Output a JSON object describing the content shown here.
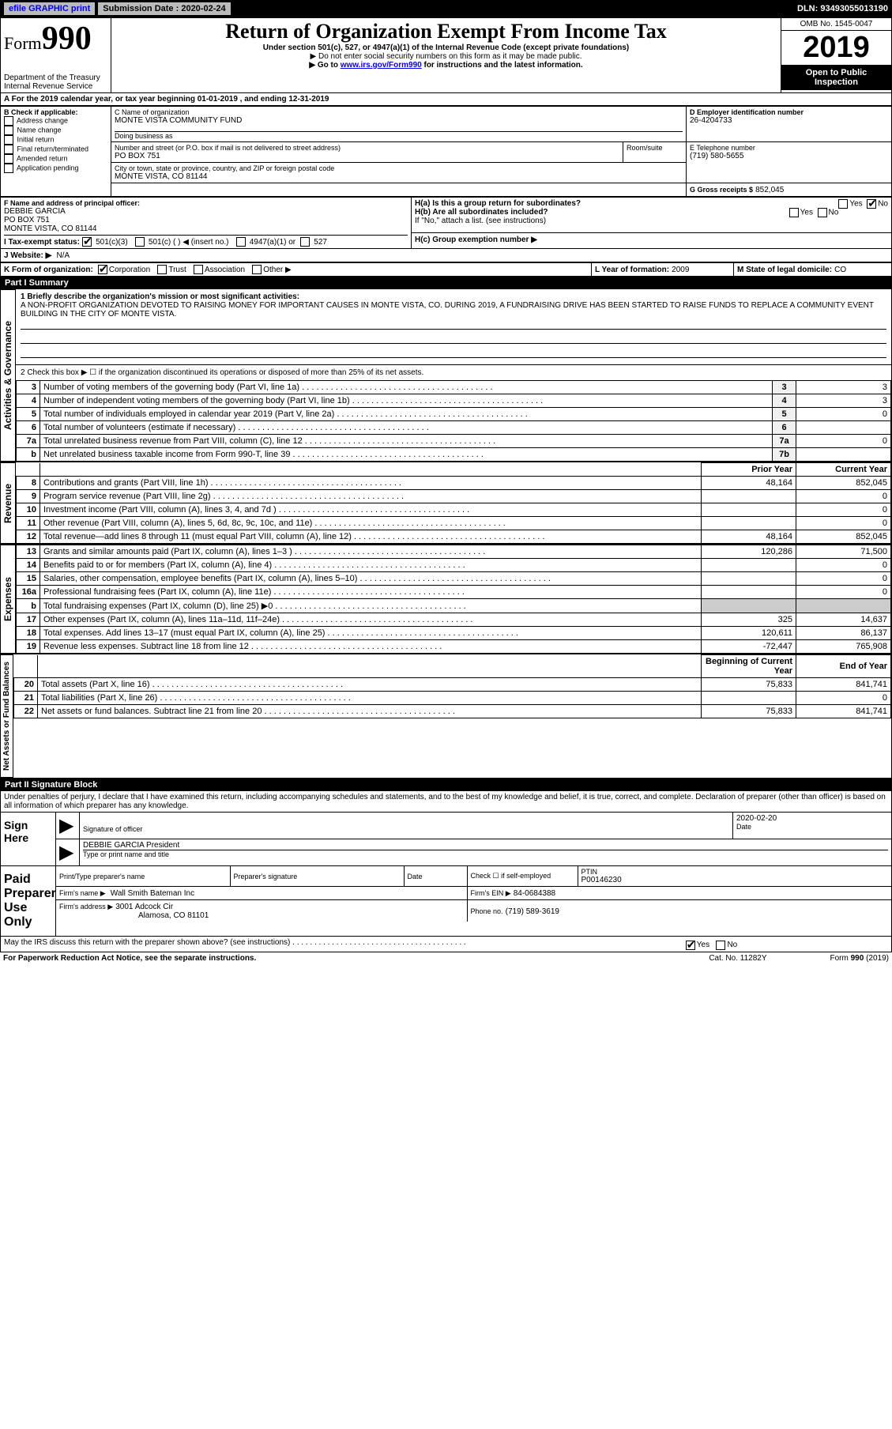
{
  "topbar": {
    "efile": "efile GRAPHIC print",
    "subdate_label": "Submission Date :",
    "subdate": "2020-02-24",
    "dln": "DLN: 93493055013190"
  },
  "header": {
    "form_label": "Form",
    "form_number": "990",
    "title": "Return of Organization Exempt From Income Tax",
    "subtitle": "Under section 501(c), 527, or 4947(a)(1) of the Internal Revenue Code (except private foundations)",
    "note1": "▶ Do not enter social security numbers on this form as it may be made public.",
    "note2_pre": "▶ Go to ",
    "note2_url": "www.irs.gov/Form990",
    "note2_post": " for instructions and the latest information.",
    "dept": "Department of the Treasury\nInternal Revenue Service",
    "omb": "OMB No. 1545-0047",
    "year": "2019",
    "open": "Open to Public Inspection"
  },
  "line_a": "For the 2019 calendar year, or tax year beginning 01-01-2019   , and ending 12-31-2019",
  "box_b": {
    "label": "B Check if applicable:",
    "items": [
      "Address change",
      "Name change",
      "Initial return",
      "Final return/terminated",
      "Amended return",
      "Application pending"
    ]
  },
  "box_c": {
    "label": "C Name of organization",
    "name": "MONTE VISTA COMMUNITY FUND",
    "dba_label": "Doing business as",
    "addr_label": "Number and street (or P.O. box if mail is not delivered to street address)",
    "room_label": "Room/suite",
    "addr": "PO BOX 751",
    "city_label": "City or town, state or province, country, and ZIP or foreign postal code",
    "city": "MONTE VISTA, CO  81144"
  },
  "box_d": {
    "label": "D Employer identification number",
    "value": "26-4204733"
  },
  "box_e": {
    "label": "E Telephone number",
    "value": "(719) 580-5655"
  },
  "box_g": {
    "label": "G Gross receipts $",
    "value": "852,045"
  },
  "box_f": {
    "label": "F  Name and address of principal officer:",
    "name": "DEBBIE GARCIA",
    "addr1": "PO BOX 751",
    "addr2": "MONTE VISTA, CO  81144"
  },
  "box_h": {
    "a_label": "H(a)  Is this a group return for subordinates?",
    "b_label": "H(b)  Are all subordinates included?",
    "b_note": "If \"No,\" attach a list. (see instructions)",
    "c_label": "H(c)  Group exemption number ▶",
    "yes": "Yes",
    "no": "No",
    "a_checked": "no"
  },
  "box_i": {
    "label": "I  Tax-exempt status:",
    "opts": [
      "501(c)(3)",
      "501(c) (  ) ◀ (insert no.)",
      "4947(a)(1) or",
      "527"
    ],
    "checked": 0
  },
  "box_j": {
    "label": "J  Website: ▶",
    "value": "N/A"
  },
  "box_k": {
    "label": "K Form of organization:",
    "opts": [
      "Corporation",
      "Trust",
      "Association",
      "Other ▶"
    ],
    "checked": 0
  },
  "box_l": {
    "label": "L Year of formation:",
    "value": "2009"
  },
  "box_m": {
    "label": "M State of legal domicile:",
    "value": "CO"
  },
  "part1": {
    "title": "Part I     Summary",
    "vlabels": [
      "Activities & Governance",
      "Revenue",
      "Expenses",
      "Net Assets or Fund Balances"
    ],
    "line1_label": "1  Briefly describe the organization's mission or most significant activities:",
    "line1_text": "A NON-PROFIT ORGANIZATION DEVOTED TO RAISING MONEY FOR IMPORTANT CAUSES IN MONTE VISTA, CO. DURING 2019, A FUNDRAISING DRIVE HAS BEEN STARTED TO RAISE FUNDS TO REPLACE A COMMUNITY EVENT BUILDING IN THE CITY OF MONTE VISTA.",
    "line2": "2   Check this box ▶ ☐  if the organization discontinued its operations or disposed of more than 25% of its net assets.",
    "gov_rows": [
      {
        "n": "3",
        "label": "Number of voting members of the governing body (Part VI, line 1a)",
        "box": "3",
        "val": "3"
      },
      {
        "n": "4",
        "label": "Number of independent voting members of the governing body (Part VI, line 1b)",
        "box": "4",
        "val": "3"
      },
      {
        "n": "5",
        "label": "Total number of individuals employed in calendar year 2019 (Part V, line 2a)",
        "box": "5",
        "val": "0"
      },
      {
        "n": "6",
        "label": "Total number of volunteers (estimate if necessary)",
        "box": "6",
        "val": ""
      },
      {
        "n": "7a",
        "label": "Total unrelated business revenue from Part VIII, column (C), line 12",
        "box": "7a",
        "val": "0"
      },
      {
        "n": "b",
        "label": "Net unrelated business taxable income from Form 990-T, line 39",
        "box": "7b",
        "val": ""
      }
    ],
    "col_headers": [
      "Prior Year",
      "Current Year"
    ],
    "rev_rows": [
      {
        "n": "8",
        "label": "Contributions and grants (Part VIII, line 1h)",
        "py": "48,164",
        "cy": "852,045"
      },
      {
        "n": "9",
        "label": "Program service revenue (Part VIII, line 2g)",
        "py": "",
        "cy": "0"
      },
      {
        "n": "10",
        "label": "Investment income (Part VIII, column (A), lines 3, 4, and 7d )",
        "py": "",
        "cy": "0"
      },
      {
        "n": "11",
        "label": "Other revenue (Part VIII, column (A), lines 5, 6d, 8c, 9c, 10c, and 11e)",
        "py": "",
        "cy": "0"
      },
      {
        "n": "12",
        "label": "Total revenue—add lines 8 through 11 (must equal Part VIII, column (A), line 12)",
        "py": "48,164",
        "cy": "852,045"
      }
    ],
    "exp_rows": [
      {
        "n": "13",
        "label": "Grants and similar amounts paid (Part IX, column (A), lines 1–3 )",
        "py": "120,286",
        "cy": "71,500"
      },
      {
        "n": "14",
        "label": "Benefits paid to or for members (Part IX, column (A), line 4)",
        "py": "",
        "cy": "0"
      },
      {
        "n": "15",
        "label": "Salaries, other compensation, employee benefits (Part IX, column (A), lines 5–10)",
        "py": "",
        "cy": "0"
      },
      {
        "n": "16a",
        "label": "Professional fundraising fees (Part IX, column (A), line 11e)",
        "py": "",
        "cy": "0"
      },
      {
        "n": "b",
        "label": "Total fundraising expenses (Part IX, column (D), line 25) ▶0",
        "py": "shade",
        "cy": "shade"
      },
      {
        "n": "17",
        "label": "Other expenses (Part IX, column (A), lines 11a–11d, 11f–24e)",
        "py": "325",
        "cy": "14,637"
      },
      {
        "n": "18",
        "label": "Total expenses. Add lines 13–17 (must equal Part IX, column (A), line 25)",
        "py": "120,611",
        "cy": "86,137"
      },
      {
        "n": "19",
        "label": "Revenue less expenses. Subtract line 18 from line 12",
        "py": "-72,447",
        "cy": "765,908"
      }
    ],
    "net_headers": [
      "Beginning of Current Year",
      "End of Year"
    ],
    "net_rows": [
      {
        "n": "20",
        "label": "Total assets (Part X, line 16)",
        "py": "75,833",
        "cy": "841,741"
      },
      {
        "n": "21",
        "label": "Total liabilities (Part X, line 26)",
        "py": "",
        "cy": "0"
      },
      {
        "n": "22",
        "label": "Net assets or fund balances. Subtract line 21 from line 20",
        "py": "75,833",
        "cy": "841,741"
      }
    ]
  },
  "part2": {
    "title": "Part II     Signature Block",
    "declaration": "Under penalties of perjury, I declare that I have examined this return, including accompanying schedules and statements, and to the best of my knowledge and belief, it is true, correct, and complete. Declaration of preparer (other than officer) is based on all information of which preparer has any knowledge.",
    "sign_here": "Sign Here",
    "sig_officer": "Signature of officer",
    "sig_date": "2020-02-20",
    "date_label": "Date",
    "officer_name": "DEBBIE GARCIA President",
    "officer_name_label": "Type or print name and title",
    "paid_label": "Paid Preparer Use Only",
    "prep_name_label": "Print/Type preparer's name",
    "prep_sig_label": "Preparer's signature",
    "prep_date_label": "Date",
    "prep_check": "Check ☐ if self-employed",
    "ptin_label": "PTIN",
    "ptin": "P00146230",
    "firm_name_label": "Firm's name    ▶",
    "firm_name": "Wall Smith Bateman Inc",
    "firm_ein_label": "Firm's EIN ▶",
    "firm_ein": "84-0684388",
    "firm_addr_label": "Firm's address ▶",
    "firm_addr1": "3001 Adcock Cir",
    "firm_addr2": "Alamosa, CO  81101",
    "phone_label": "Phone no.",
    "phone": "(719) 589-3619",
    "discuss": "May the IRS discuss this return with the preparer shown above? (see instructions)",
    "discuss_yes": "Yes",
    "discuss_no": "No"
  },
  "footer": {
    "left": "For Paperwork Reduction Act Notice, see the separate instructions.",
    "mid": "Cat. No. 11282Y",
    "right": "Form 990 (2019)"
  },
  "colors": {
    "black": "#000000",
    "link": "#0000ff",
    "grey": "#bbbbbb",
    "shade": "#cccccc"
  }
}
